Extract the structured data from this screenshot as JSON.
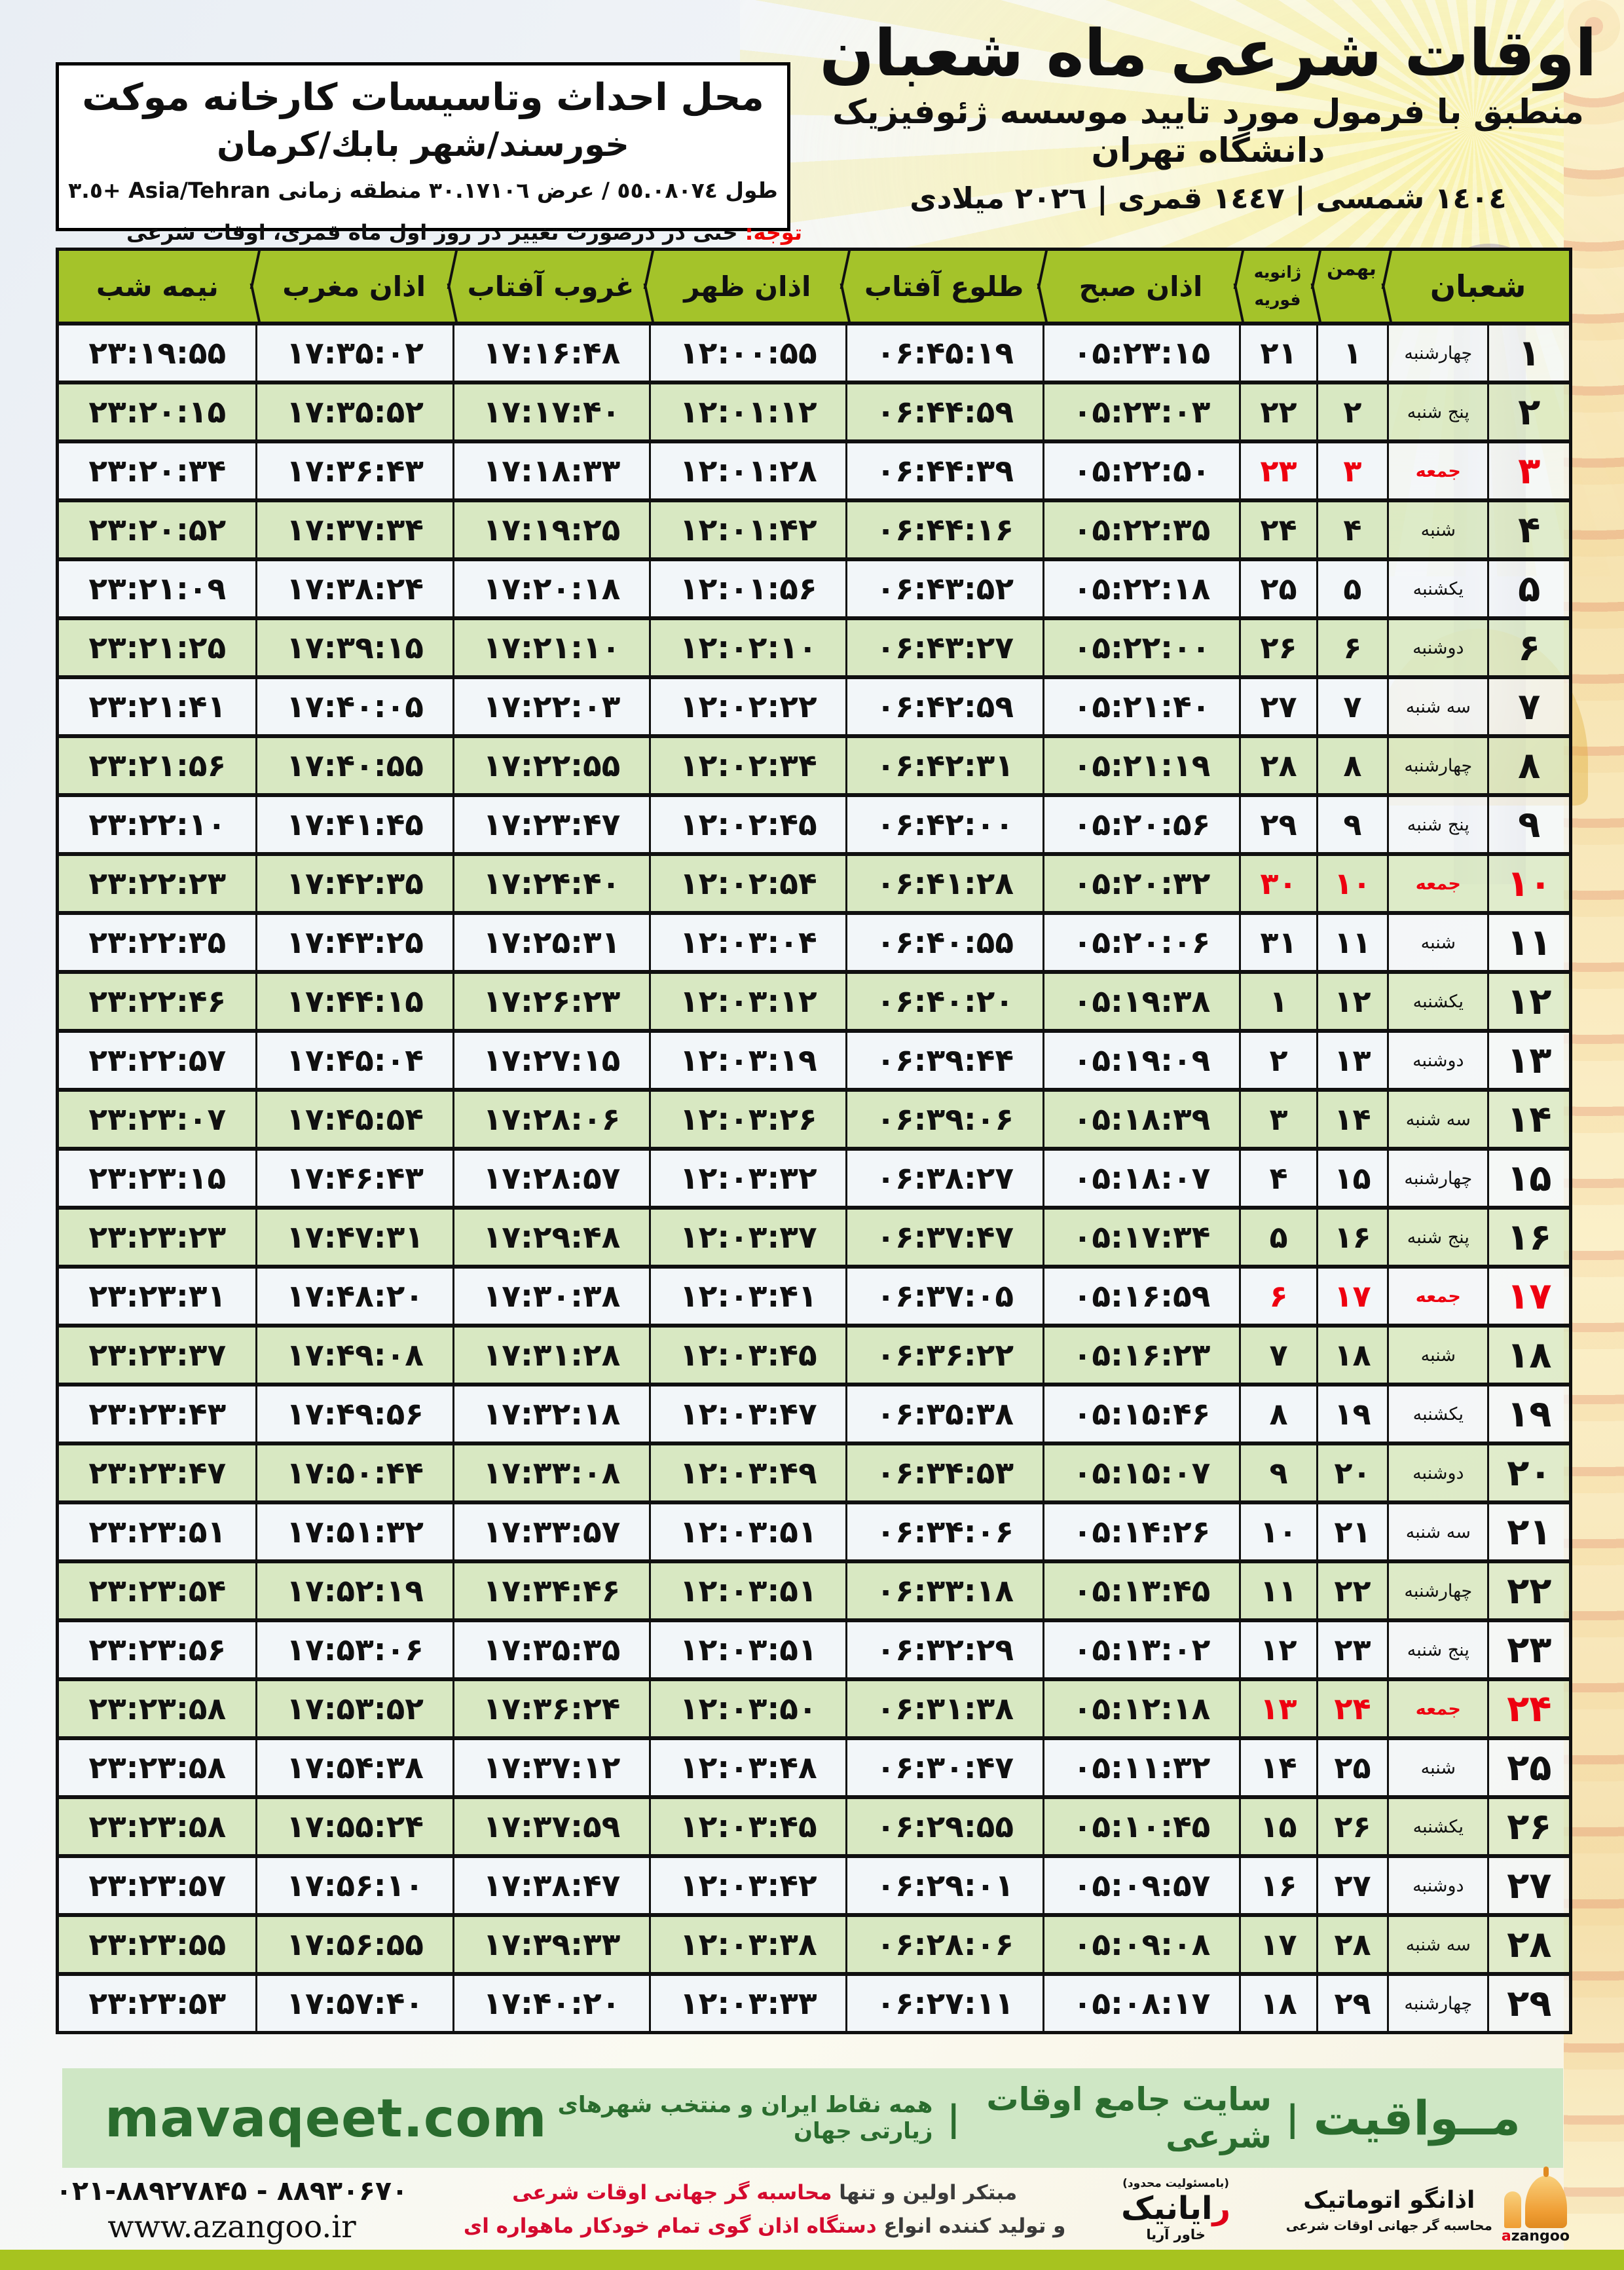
{
  "title": {
    "main": "اوقات شرعی ماه شعبان",
    "subtitle": "منطبق با فرمول مورد تایید موسسه ژئوفیزیک دانشگاه تهران",
    "years": "١٤٠٤ شمسی | ١٤٤٧ قمری | ٢٠٢٦ میلادی"
  },
  "location_box": {
    "line1": "محل احداث وتاسیسات کارخانه موکت",
    "line2": "خورسند/شهر بابك/کرمان",
    "line3": "طول ٥٥.٠٨٠٧٤ / عرض ٣٠.١٧١٠٦ منطقه زمانی Asia/Tehran +٣.٥"
  },
  "notice": {
    "label": "توجه:",
    "text": " حتی در درصورت تغییر در روز اول ماه قمری، اوقات شرعی کماکان برای روزهای شمسی و میلادی معتبر است."
  },
  "table": {
    "headers": {
      "shaban": "شعبان",
      "bahman": "بهمن",
      "jan": "ژانویه",
      "feb": "فوریه",
      "sobh": "اذان صبح",
      "tolu": "طلوع آفتاب",
      "zohr": "اذان ظهر",
      "ghorub": "غروب آفتاب",
      "maghreb": "اذان مغرب",
      "nime": "نیمه شب"
    },
    "rows": [
      {
        "sha": "۱",
        "weekday": "چهارشنبه",
        "bahman": "۱",
        "jan": "۲۱",
        "sobh": "۰۵:۲۳:۱۵",
        "tolu": "۰۶:۴۵:۱۹",
        "zohr": "۱۲:۰۰:۵۵",
        "ghorub": "۱۷:۱۶:۴۸",
        "maghreb": "۱۷:۳۵:۰۲",
        "nime": "۲۳:۱۹:۵۵",
        "friday": false
      },
      {
        "sha": "۲",
        "weekday": "پنج شنبه",
        "bahman": "۲",
        "jan": "۲۲",
        "sobh": "۰۵:۲۳:۰۳",
        "tolu": "۰۶:۴۴:۵۹",
        "zohr": "۱۲:۰۱:۱۲",
        "ghorub": "۱۷:۱۷:۴۰",
        "maghreb": "۱۷:۳۵:۵۲",
        "nime": "۲۳:۲۰:۱۵",
        "friday": false
      },
      {
        "sha": "۳",
        "weekday": "جمعه",
        "bahman": "۳",
        "jan": "۲۳",
        "sobh": "۰۵:۲۲:۵۰",
        "tolu": "۰۶:۴۴:۳۹",
        "zohr": "۱۲:۰۱:۲۸",
        "ghorub": "۱۷:۱۸:۳۳",
        "maghreb": "۱۷:۳۶:۴۳",
        "nime": "۲۳:۲۰:۳۴",
        "friday": true
      },
      {
        "sha": "۴",
        "weekday": "شنبه",
        "bahman": "۴",
        "jan": "۲۴",
        "sobh": "۰۵:۲۲:۳۵",
        "tolu": "۰۶:۴۴:۱۶",
        "zohr": "۱۲:۰۱:۴۲",
        "ghorub": "۱۷:۱۹:۲۵",
        "maghreb": "۱۷:۳۷:۳۴",
        "nime": "۲۳:۲۰:۵۲",
        "friday": false
      },
      {
        "sha": "۵",
        "weekday": "یکشنبه",
        "bahman": "۵",
        "jan": "۲۵",
        "sobh": "۰۵:۲۲:۱۸",
        "tolu": "۰۶:۴۳:۵۲",
        "zohr": "۱۲:۰۱:۵۶",
        "ghorub": "۱۷:۲۰:۱۸",
        "maghreb": "۱۷:۳۸:۲۴",
        "nime": "۲۳:۲۱:۰۹",
        "friday": false
      },
      {
        "sha": "۶",
        "weekday": "دوشنبه",
        "bahman": "۶",
        "jan": "۲۶",
        "sobh": "۰۵:۲۲:۰۰",
        "tolu": "۰۶:۴۳:۲۷",
        "zohr": "۱۲:۰۲:۱۰",
        "ghorub": "۱۷:۲۱:۱۰",
        "maghreb": "۱۷:۳۹:۱۵",
        "nime": "۲۳:۲۱:۲۵",
        "friday": false
      },
      {
        "sha": "۷",
        "weekday": "سه شنبه",
        "bahman": "۷",
        "jan": "۲۷",
        "sobh": "۰۵:۲۱:۴۰",
        "tolu": "۰۶:۴۲:۵۹",
        "zohr": "۱۲:۰۲:۲۲",
        "ghorub": "۱۷:۲۲:۰۳",
        "maghreb": "۱۷:۴۰:۰۵",
        "nime": "۲۳:۲۱:۴۱",
        "friday": false
      },
      {
        "sha": "۸",
        "weekday": "چهارشنبه",
        "bahman": "۸",
        "jan": "۲۸",
        "sobh": "۰۵:۲۱:۱۹",
        "tolu": "۰۶:۴۲:۳۱",
        "zohr": "۱۲:۰۲:۳۴",
        "ghorub": "۱۷:۲۲:۵۵",
        "maghreb": "۱۷:۴۰:۵۵",
        "nime": "۲۳:۲۱:۵۶",
        "friday": false
      },
      {
        "sha": "۹",
        "weekday": "پنج شنبه",
        "bahman": "۹",
        "jan": "۲۹",
        "sobh": "۰۵:۲۰:۵۶",
        "tolu": "۰۶:۴۲:۰۰",
        "zohr": "۱۲:۰۲:۴۵",
        "ghorub": "۱۷:۲۳:۴۷",
        "maghreb": "۱۷:۴۱:۴۵",
        "nime": "۲۳:۲۲:۱۰",
        "friday": false
      },
      {
        "sha": "۱۰",
        "weekday": "جمعه",
        "bahman": "۱۰",
        "jan": "۳۰",
        "sobh": "۰۵:۲۰:۳۲",
        "tolu": "۰۶:۴۱:۲۸",
        "zohr": "۱۲:۰۲:۵۴",
        "ghorub": "۱۷:۲۴:۴۰",
        "maghreb": "۱۷:۴۲:۳۵",
        "nime": "۲۳:۲۲:۲۳",
        "friday": true
      },
      {
        "sha": "۱۱",
        "weekday": "شنبه",
        "bahman": "۱۱",
        "jan": "۳۱",
        "sobh": "۰۵:۲۰:۰۶",
        "tolu": "۰۶:۴۰:۵۵",
        "zohr": "۱۲:۰۳:۰۴",
        "ghorub": "۱۷:۲۵:۳۱",
        "maghreb": "۱۷:۴۳:۲۵",
        "nime": "۲۳:۲۲:۳۵",
        "friday": false
      },
      {
        "sha": "۱۲",
        "weekday": "یکشنبه",
        "bahman": "۱۲",
        "jan": "۱",
        "sobh": "۰۵:۱۹:۳۸",
        "tolu": "۰۶:۴۰:۲۰",
        "zohr": "۱۲:۰۳:۱۲",
        "ghorub": "۱۷:۲۶:۲۳",
        "maghreb": "۱۷:۴۴:۱۵",
        "nime": "۲۳:۲۲:۴۶",
        "friday": false
      },
      {
        "sha": "۱۳",
        "weekday": "دوشنبه",
        "bahman": "۱۳",
        "jan": "۲",
        "sobh": "۰۵:۱۹:۰۹",
        "tolu": "۰۶:۳۹:۴۴",
        "zohr": "۱۲:۰۳:۱۹",
        "ghorub": "۱۷:۲۷:۱۵",
        "maghreb": "۱۷:۴۵:۰۴",
        "nime": "۲۳:۲۲:۵۷",
        "friday": false
      },
      {
        "sha": "۱۴",
        "weekday": "سه شنبه",
        "bahman": "۱۴",
        "jan": "۳",
        "sobh": "۰۵:۱۸:۳۹",
        "tolu": "۰۶:۳۹:۰۶",
        "zohr": "۱۲:۰۳:۲۶",
        "ghorub": "۱۷:۲۸:۰۶",
        "maghreb": "۱۷:۴۵:۵۴",
        "nime": "۲۳:۲۳:۰۷",
        "friday": false
      },
      {
        "sha": "۱۵",
        "weekday": "چهارشنبه",
        "bahman": "۱۵",
        "jan": "۴",
        "sobh": "۰۵:۱۸:۰۷",
        "tolu": "۰۶:۳۸:۲۷",
        "zohr": "۱۲:۰۳:۳۲",
        "ghorub": "۱۷:۲۸:۵۷",
        "maghreb": "۱۷:۴۶:۴۳",
        "nime": "۲۳:۲۳:۱۵",
        "friday": false
      },
      {
        "sha": "۱۶",
        "weekday": "پنج شنبه",
        "bahman": "۱۶",
        "jan": "۵",
        "sobh": "۰۵:۱۷:۳۴",
        "tolu": "۰۶:۳۷:۴۷",
        "zohr": "۱۲:۰۳:۳۷",
        "ghorub": "۱۷:۲۹:۴۸",
        "maghreb": "۱۷:۴۷:۳۱",
        "nime": "۲۳:۲۳:۲۳",
        "friday": false
      },
      {
        "sha": "۱۷",
        "weekday": "جمعه",
        "bahman": "۱۷",
        "jan": "۶",
        "sobh": "۰۵:۱۶:۵۹",
        "tolu": "۰۶:۳۷:۰۵",
        "zohr": "۱۲:۰۳:۴۱",
        "ghorub": "۱۷:۳۰:۳۸",
        "maghreb": "۱۷:۴۸:۲۰",
        "nime": "۲۳:۲۳:۳۱",
        "friday": true
      },
      {
        "sha": "۱۸",
        "weekday": "شنبه",
        "bahman": "۱۸",
        "jan": "۷",
        "sobh": "۰۵:۱۶:۲۳",
        "tolu": "۰۶:۳۶:۲۲",
        "zohr": "۱۲:۰۳:۴۵",
        "ghorub": "۱۷:۳۱:۲۸",
        "maghreb": "۱۷:۴۹:۰۸",
        "nime": "۲۳:۲۳:۳۷",
        "friday": false
      },
      {
        "sha": "۱۹",
        "weekday": "یکشنبه",
        "bahman": "۱۹",
        "jan": "۸",
        "sobh": "۰۵:۱۵:۴۶",
        "tolu": "۰۶:۳۵:۳۸",
        "zohr": "۱۲:۰۳:۴۷",
        "ghorub": "۱۷:۳۲:۱۸",
        "maghreb": "۱۷:۴۹:۵۶",
        "nime": "۲۳:۲۳:۴۳",
        "friday": false
      },
      {
        "sha": "۲۰",
        "weekday": "دوشنبه",
        "bahman": "۲۰",
        "jan": "۹",
        "sobh": "۰۵:۱۵:۰۷",
        "tolu": "۰۶:۳۴:۵۳",
        "zohr": "۱۲:۰۳:۴۹",
        "ghorub": "۱۷:۳۳:۰۸",
        "maghreb": "۱۷:۵۰:۴۴",
        "nime": "۲۳:۲۳:۴۷",
        "friday": false
      },
      {
        "sha": "۲۱",
        "weekday": "سه شنبه",
        "bahman": "۲۱",
        "jan": "۱۰",
        "sobh": "۰۵:۱۴:۲۶",
        "tolu": "۰۶:۳۴:۰۶",
        "zohr": "۱۲:۰۳:۵۱",
        "ghorub": "۱۷:۳۳:۵۷",
        "maghreb": "۱۷:۵۱:۳۲",
        "nime": "۲۳:۲۳:۵۱",
        "friday": false
      },
      {
        "sha": "۲۲",
        "weekday": "چهارشنبه",
        "bahman": "۲۲",
        "jan": "۱۱",
        "sobh": "۰۵:۱۳:۴۵",
        "tolu": "۰۶:۳۳:۱۸",
        "zohr": "۱۲:۰۳:۵۱",
        "ghorub": "۱۷:۳۴:۴۶",
        "maghreb": "۱۷:۵۲:۱۹",
        "nime": "۲۳:۲۳:۵۴",
        "friday": false
      },
      {
        "sha": "۲۳",
        "weekday": "پنج شنبه",
        "bahman": "۲۳",
        "jan": "۱۲",
        "sobh": "۰۵:۱۳:۰۲",
        "tolu": "۰۶:۳۲:۲۹",
        "zohr": "۱۲:۰۳:۵۱",
        "ghorub": "۱۷:۳۵:۳۵",
        "maghreb": "۱۷:۵۳:۰۶",
        "nime": "۲۳:۲۳:۵۶",
        "friday": false
      },
      {
        "sha": "۲۴",
        "weekday": "جمعه",
        "bahman": "۲۴",
        "jan": "۱۳",
        "sobh": "۰۵:۱۲:۱۸",
        "tolu": "۰۶:۳۱:۳۸",
        "zohr": "۱۲:۰۳:۵۰",
        "ghorub": "۱۷:۳۶:۲۴",
        "maghreb": "۱۷:۵۳:۵۲",
        "nime": "۲۳:۲۳:۵۸",
        "friday": true
      },
      {
        "sha": "۲۵",
        "weekday": "شنبه",
        "bahman": "۲۵",
        "jan": "۱۴",
        "sobh": "۰۵:۱۱:۳۲",
        "tolu": "۰۶:۳۰:۴۷",
        "zohr": "۱۲:۰۳:۴۸",
        "ghorub": "۱۷:۳۷:۱۲",
        "maghreb": "۱۷:۵۴:۳۸",
        "nime": "۲۳:۲۳:۵۸",
        "friday": false
      },
      {
        "sha": "۲۶",
        "weekday": "یکشنبه",
        "bahman": "۲۶",
        "jan": "۱۵",
        "sobh": "۰۵:۱۰:۴۵",
        "tolu": "۰۶:۲۹:۵۵",
        "zohr": "۱۲:۰۳:۴۵",
        "ghorub": "۱۷:۳۷:۵۹",
        "maghreb": "۱۷:۵۵:۲۴",
        "nime": "۲۳:۲۳:۵۸",
        "friday": false
      },
      {
        "sha": "۲۷",
        "weekday": "دوشنبه",
        "bahman": "۲۷",
        "jan": "۱۶",
        "sobh": "۰۵:۰۹:۵۷",
        "tolu": "۰۶:۲۹:۰۱",
        "zohr": "۱۲:۰۳:۴۲",
        "ghorub": "۱۷:۳۸:۴۷",
        "maghreb": "۱۷:۵۶:۱۰",
        "nime": "۲۳:۲۳:۵۷",
        "friday": false
      },
      {
        "sha": "۲۸",
        "weekday": "سه شنبه",
        "bahman": "۲۸",
        "jan": "۱۷",
        "sobh": "۰۵:۰۹:۰۸",
        "tolu": "۰۶:۲۸:۰۶",
        "zohr": "۱۲:۰۳:۳۸",
        "ghorub": "۱۷:۳۹:۳۳",
        "maghreb": "۱۷:۵۶:۵۵",
        "nime": "۲۳:۲۳:۵۵",
        "friday": false
      },
      {
        "sha": "۲۹",
        "weekday": "چهارشنبه",
        "bahman": "۲۹",
        "jan": "۱۸",
        "sobh": "۰۵:۰۸:۱۷",
        "tolu": "۰۶:۲۷:۱۱",
        "zohr": "۱۲:۰۳:۳۳",
        "ghorub": "۱۷:۴۰:۲۰",
        "maghreb": "۱۷:۵۷:۴۰",
        "nime": "۲۳:۲۳:۵۳",
        "friday": false
      }
    ]
  },
  "footer_band": {
    "site_en": "mavaqeet.com",
    "brand": "مــواقیت",
    "sep": "|",
    "tagline1": "سایت جامع اوقات شرعی",
    "tagline2": "همه نقاط ایران و منتخب شهرهای زیارتی جهان"
  },
  "bottom": {
    "slogan1_black": "مبتکر اولین و تنها ",
    "slogan1_red": "محاسبه گر جهانی اوقات شرعی",
    "slogan2_black": "و تولید کننده انواع ",
    "slogan2_red": "دستگاه اذان گوی تمام خودکار ماهواره ای",
    "rayanik_small": "(بامسئولیت محدود)",
    "rayanik_red": "ر",
    "rayanik_rest": "ایانیک",
    "rayanik_sub": "خاور آریا",
    "azangoo_title": "اذانگو اتوماتیک",
    "azangoo_sub": "محاسبه گر جهانی اوقات شرعی",
    "azangoo_en_red": "a",
    "azangoo_en_rest": "zangoo",
    "phone": "۰۲۱-۸۸۹۲۷۸۴۵ - ۸۸۹۳۰۶۷۰",
    "website": "www.azangoo.ir"
  },
  "colors": {
    "header_green": "#a4c32a",
    "row_green": "#d8e8c2",
    "row_white": "#f2f6f9",
    "friday_red": "#ee0010",
    "notice_red": "#f00000",
    "band_bg": "#cfe7c5",
    "band_text": "#2a6c2e",
    "bottom_bar": "#a7c31f",
    "border": "#101010"
  }
}
